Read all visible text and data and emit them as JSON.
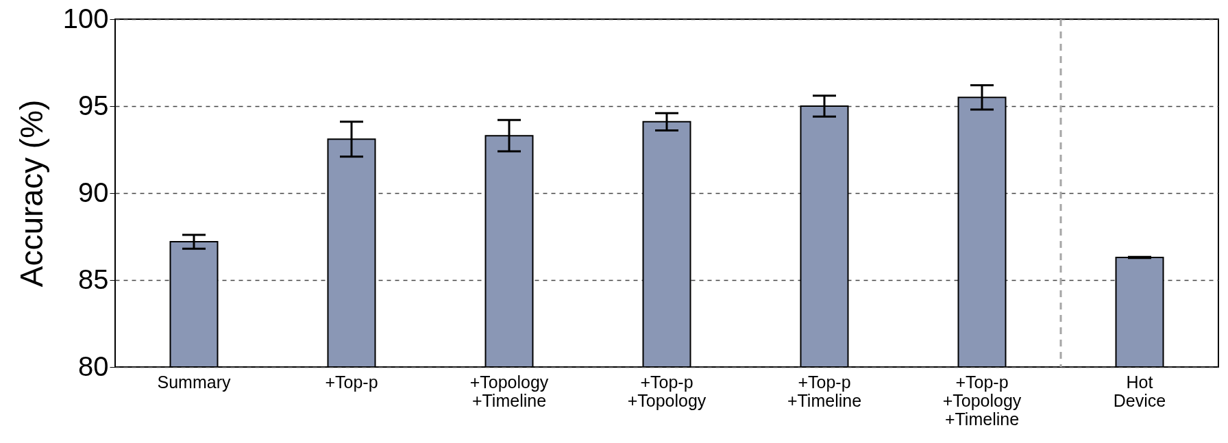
{
  "chart_data": {
    "type": "bar",
    "ylabel": "Accuracy (%)",
    "categories": [
      "Summary",
      "+Top-p",
      "+Topology\n+Timeline",
      "+Top-p\n+Topology",
      "+Top-p\n+Timeline",
      "+Top-p\n+Topology\n+Timeline",
      "Hot\nDevice"
    ],
    "values": [
      87.2,
      93.1,
      93.3,
      94.1,
      95.0,
      95.5,
      86.3
    ],
    "errors": [
      0.4,
      1.0,
      0.9,
      0.5,
      0.6,
      0.7,
      0.03
    ],
    "color": "#8a97b5",
    "ylim": [
      80,
      100
    ],
    "yticks": [
      80,
      85,
      90,
      95,
      100
    ],
    "grid": "y",
    "ref_lines": [
      {
        "axis": "x",
        "value": "Hot\nDevice",
        "color": "#a6a6a6",
        "line_style": "dashed"
      }
    ]
  }
}
